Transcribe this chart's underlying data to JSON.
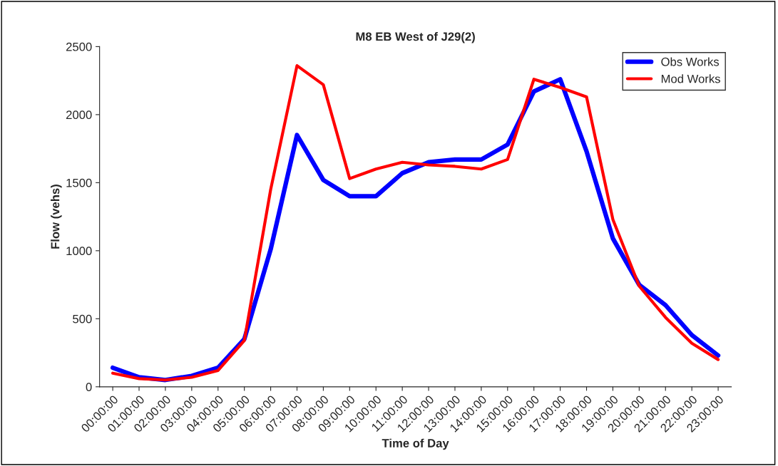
{
  "chart_data": {
    "type": "line",
    "title": "M8 EB West of J29(2)",
    "xlabel": "Time of Day",
    "ylabel": "Flow (vehs)",
    "categories": [
      "00:00:00",
      "01:00:00",
      "02:00:00",
      "03:00:00",
      "04:00:00",
      "05:00:00",
      "06:00:00",
      "07:00:00",
      "08:00:00",
      "09:00:00",
      "10:00:00",
      "11:00:00",
      "12:00:00",
      "13:00:00",
      "14:00:00",
      "15:00:00",
      "16:00:00",
      "17:00:00",
      "18:00:00",
      "19:00:00",
      "20:00:00",
      "21:00:00",
      "22:00:00",
      "23:00:00"
    ],
    "series": [
      {
        "name": "Obs Works",
        "color": "#0000ff",
        "values": [
          140,
          70,
          50,
          80,
          140,
          350,
          1010,
          1850,
          1520,
          1400,
          1400,
          1570,
          1650,
          1670,
          1670,
          1780,
          2170,
          2260,
          1730,
          1090,
          750,
          600,
          380,
          230
        ]
      },
      {
        "name": "Mod Works",
        "color": "#ff0000",
        "values": [
          100,
          60,
          50,
          70,
          120,
          340,
          1450,
          2360,
          2220,
          1530,
          1600,
          1650,
          1630,
          1620,
          1600,
          1670,
          2260,
          2200,
          2130,
          1230,
          740,
          510,
          320,
          200
        ]
      }
    ],
    "ylim": [
      0,
      2500
    ],
    "yticks": [
      0,
      500,
      1000,
      1500,
      2000,
      2500
    ],
    "grid": false,
    "legend": "top right",
    "marker": "none",
    "line_style": "solid"
  }
}
